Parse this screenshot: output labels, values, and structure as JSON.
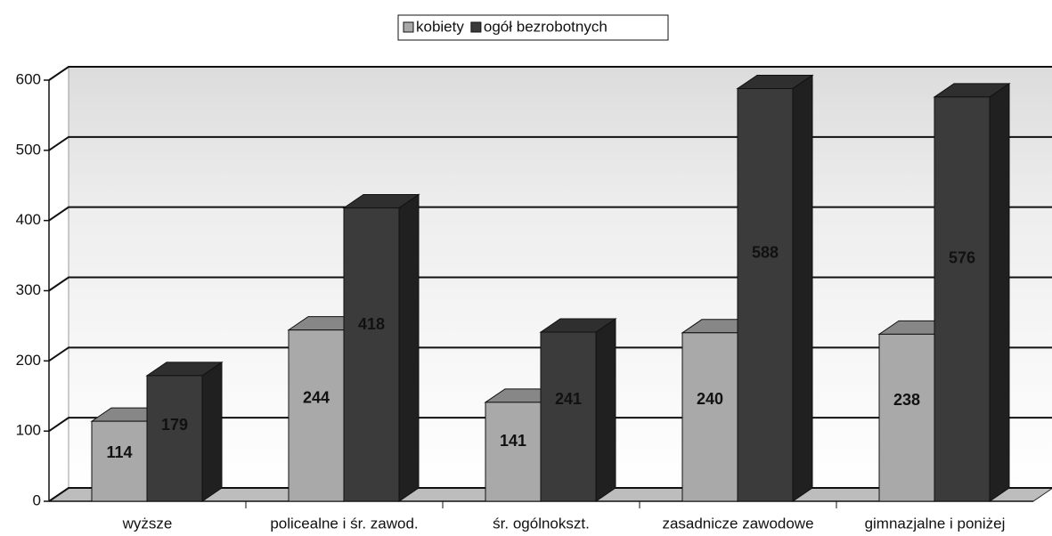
{
  "chart_data": {
    "type": "bar3d",
    "categories": [
      "wyższe",
      "policealne i śr. zawod.",
      "śr. ogólnokszt.",
      "zasadnicze zawodowe",
      "gimnazjalne i poniżej"
    ],
    "series": [
      {
        "name": "kobiety",
        "color": "#a9a9a9",
        "values": [
          114,
          244,
          141,
          240,
          238
        ]
      },
      {
        "name": "ogół bezrobotnych",
        "color": "#3b3b3b",
        "values": [
          179,
          418,
          241,
          588,
          576
        ]
      }
    ],
    "ylim": [
      0,
      600
    ],
    "yticks": [
      0,
      100,
      200,
      300,
      400,
      500,
      600
    ],
    "grid": true
  }
}
